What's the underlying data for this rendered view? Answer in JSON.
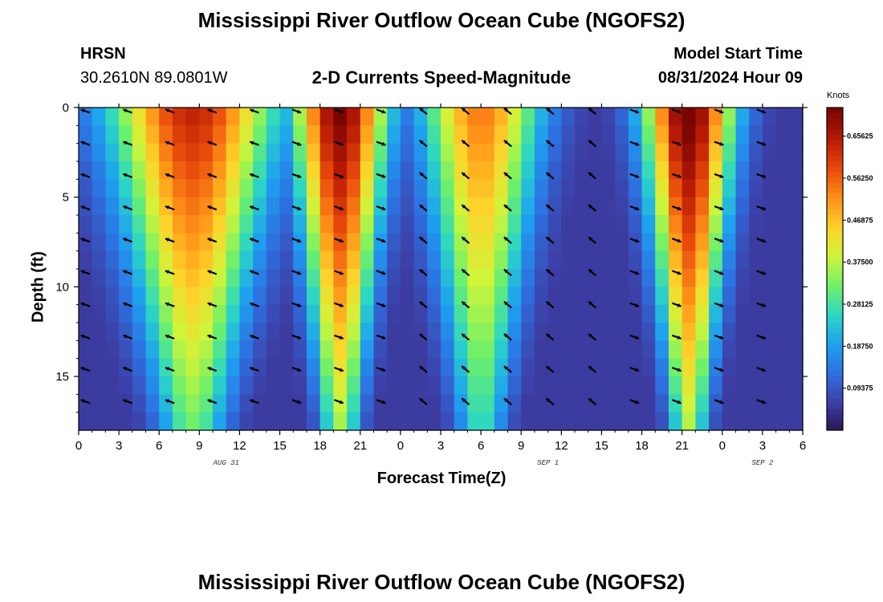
{
  "header": {
    "title": "Mississippi River Outflow Ocean Cube (NGOFS2)",
    "station": "HRSN",
    "coords": "30.2610N  89.0801W",
    "subtitle": "2-D Currents Speed-Magnitude",
    "model_start_label": "Model Start Time",
    "model_start_value": "08/31/2024 Hour 09"
  },
  "footer": {
    "title": "Mississippi River Outflow Ocean Cube (NGOFS2)"
  },
  "chart_data": {
    "type": "heatmap",
    "xlabel": "Forecast Time(Z)",
    "ylabel": "Depth (ft)",
    "x_tick_labels": [
      "0",
      "3",
      "6",
      "9",
      "12",
      "15",
      "18",
      "21",
      "0",
      "3",
      "6",
      "9",
      "12",
      "15",
      "18",
      "21",
      "0",
      "3",
      "6"
    ],
    "date_labels": [
      {
        "text": "AUG 31",
        "hour": 11
      },
      {
        "text": "SEP 1",
        "hour": 35
      },
      {
        "text": "SEP 2",
        "hour": 51
      }
    ],
    "x_range_hours": [
      0,
      54
    ],
    "y_ticks": [
      0,
      5,
      10,
      15
    ],
    "y_range": [
      0,
      18
    ],
    "colorbar": {
      "unit": "Knots",
      "ticks": [
        "0.65625",
        "0.56250",
        "0.46875",
        "0.37500",
        "0.28125",
        "0.18750",
        "0.09375"
      ],
      "tick_values": [
        0.65625,
        0.5625,
        0.46875,
        0.375,
        0.28125,
        0.1875,
        0.09375
      ],
      "range": [
        0,
        0.72
      ],
      "colors": [
        "#2b0f4e",
        "#3d3fa6",
        "#2e6fe0",
        "#1ea0f0",
        "#2cd6c4",
        "#6ef06a",
        "#cef53a",
        "#ffd22a",
        "#ff9018",
        "#e84a0c",
        "#b81a04",
        "#7a0603"
      ]
    },
    "pulses": [
      {
        "center_hour": 8.5,
        "half_width": 7,
        "peak": 0.6,
        "direction_deg": 200
      },
      {
        "center_hour": 19.5,
        "half_width": 4,
        "peak": 0.68,
        "direction_deg": 20
      },
      {
        "center_hour": 30,
        "half_width": 5,
        "peak": 0.5,
        "direction_deg": 220
      },
      {
        "center_hour": 21.5,
        "half_width": 3.8,
        "peak": 0.7,
        "direction_deg": 20,
        "offset_hours": 24
      }
    ]
  }
}
